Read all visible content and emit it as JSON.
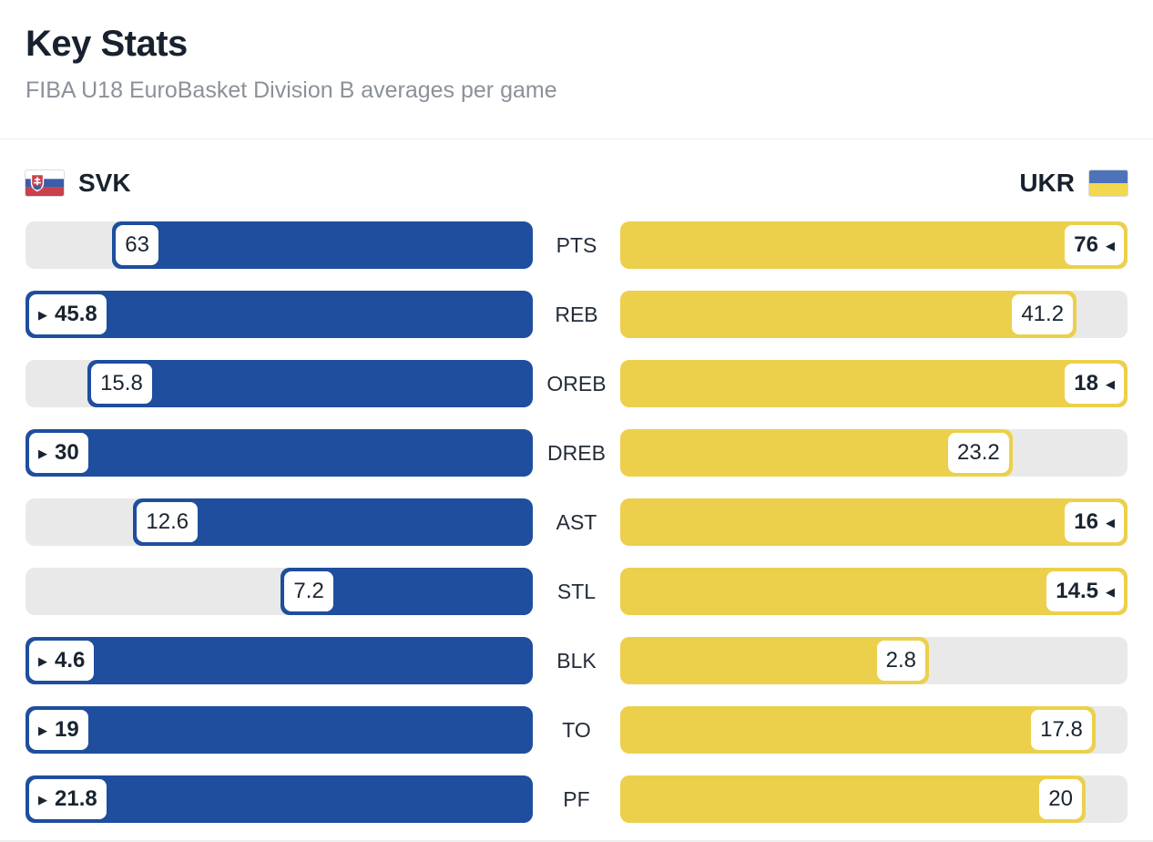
{
  "header": {
    "title": "Key Stats",
    "subtitle": "FIBA U18 EuroBasket Division B averages per game"
  },
  "teams": {
    "left": {
      "code": "SVK",
      "flag_icon": "slovakia-flag",
      "bar_color": "#1e4e9d"
    },
    "right": {
      "code": "UKR",
      "flag_icon": "ukraine-flag",
      "bar_color": "#ecd04b"
    }
  },
  "ui": {
    "track_color": "#e9e9e9",
    "winner_arrow_left_glyph": "◀",
    "winner_arrow_right_glyph": "▶"
  },
  "chart_data": {
    "type": "bar",
    "orientation": "horizontal-mirrored",
    "title": "Key Stats",
    "subtitle": "FIBA U18 EuroBasket Division B averages per game",
    "categories": [
      "PTS",
      "REB",
      "OREB",
      "DREB",
      "AST",
      "STL",
      "BLK",
      "TO",
      "PF"
    ],
    "series": [
      {
        "name": "SVK",
        "color": "#1e4e9d",
        "values": [
          63,
          45.8,
          15.8,
          30,
          12.6,
          7.2,
          4.6,
          19,
          21.8
        ]
      },
      {
        "name": "UKR",
        "color": "#ecd04b",
        "values": [
          76,
          41.2,
          18,
          23.2,
          16,
          14.5,
          2.8,
          17.8,
          20
        ]
      }
    ],
    "value_labels_shown": true,
    "winner_marker": "triangle pointing toward winning value, value bold",
    "scaling": "each row scaled independently, bar length = value / row max",
    "legend_position": "above chart, left = SVK, right = UKR",
    "grid": false
  }
}
